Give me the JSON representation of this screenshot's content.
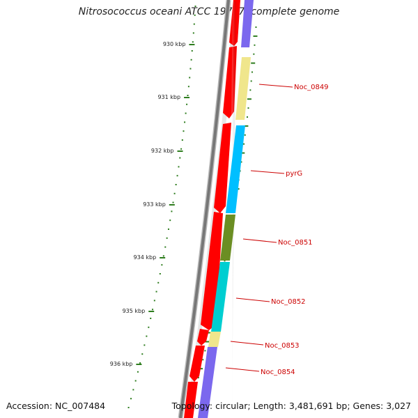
{
  "header": {
    "title": "Nitrosococcus oceani ATCC 19707, complete genome"
  },
  "footer": {
    "accession": "Accession: NC_007484",
    "summary": "Topology: circular; Length: 3,481,691 bp; Genes: 3,027"
  },
  "colors": {
    "backbone": "#777777",
    "cds_forward": "#ff0000",
    "tick": "#2e7d1e",
    "label": "#cc0000"
  },
  "ruler": {
    "unit": "kbp",
    "ticks": [
      "930 kbp",
      "931 kbp",
      "932 kbp",
      "933 kbp",
      "934 kbp",
      "935 kbp",
      "936 kbp"
    ]
  },
  "genes": [
    {
      "label": "",
      "color": "#7b68ee"
    },
    {
      "label": "Noc_0849",
      "color": "#f0e68c"
    },
    {
      "label": "pyrG",
      "color": "#00bfff"
    },
    {
      "label": "Noc_0851",
      "color": "#6b8e23"
    },
    {
      "label": "Noc_0852",
      "color": "#00ced1"
    },
    {
      "label": "Noc_0853",
      "color": "#f0e68c"
    },
    {
      "label": "Noc_0854",
      "color": "#7b68ee"
    }
  ]
}
